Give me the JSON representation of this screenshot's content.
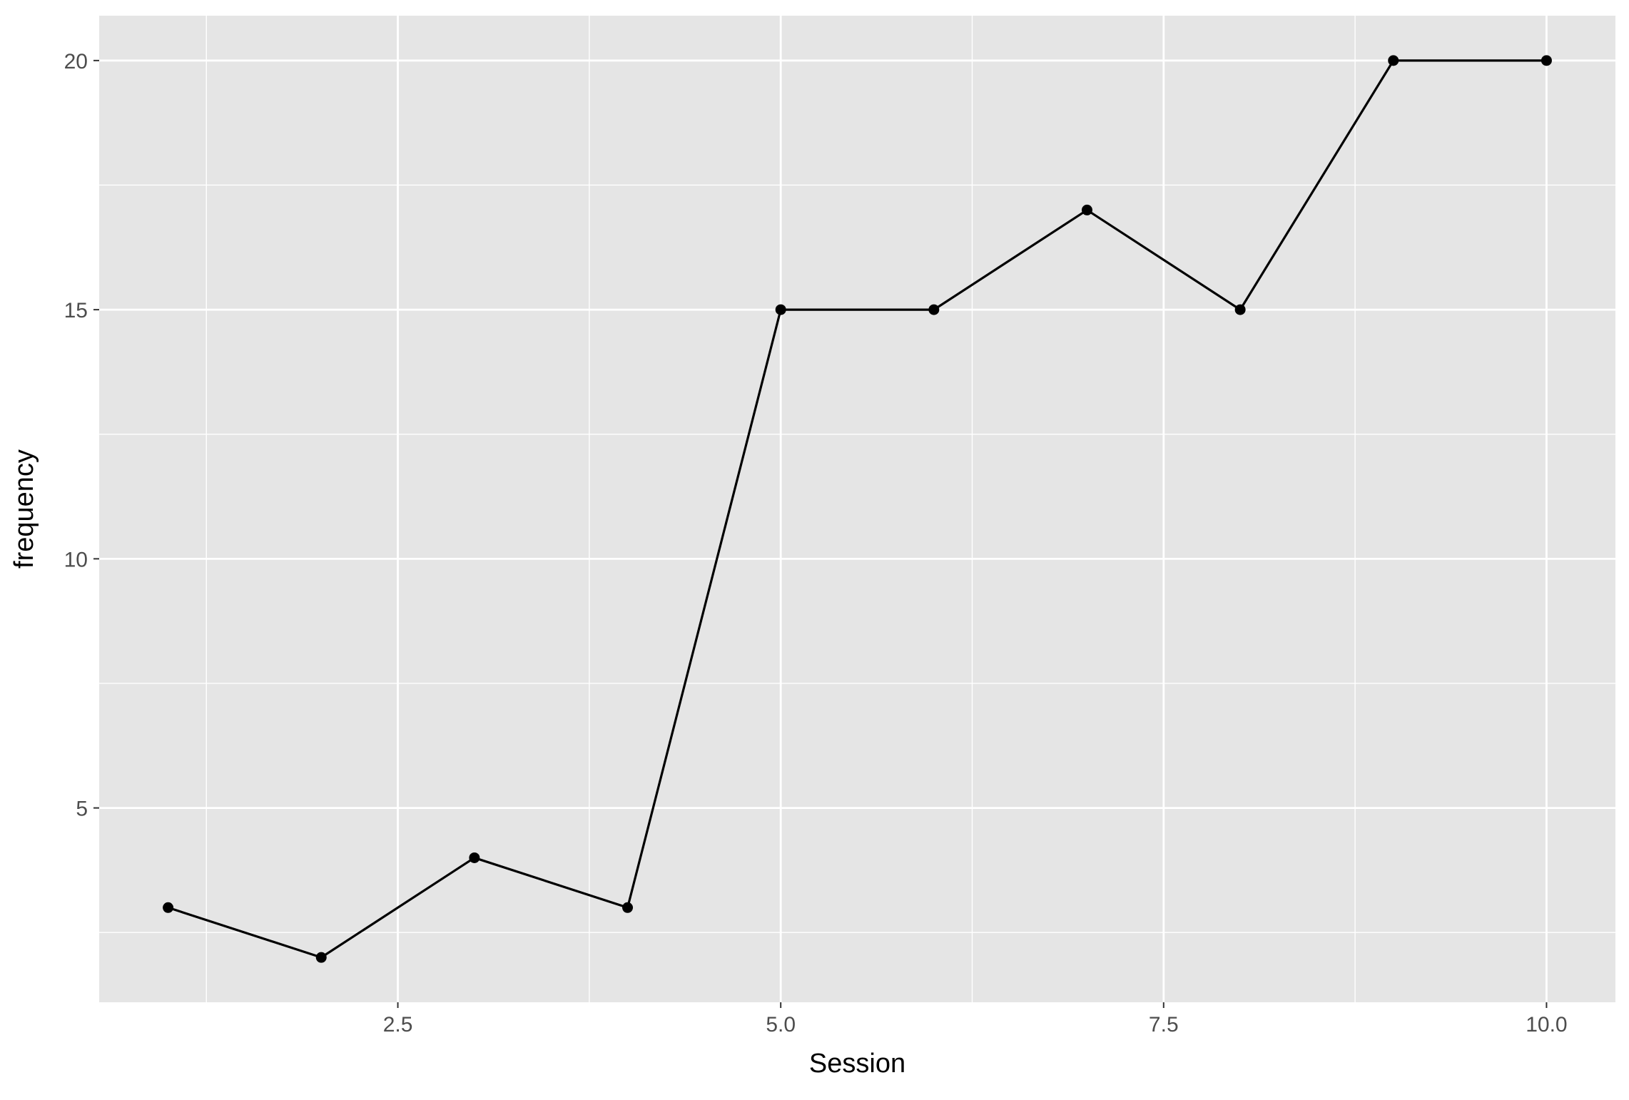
{
  "chart_data": {
    "type": "line",
    "title": "",
    "xlabel": "Session",
    "ylabel": "frequency",
    "x": [
      1,
      2,
      3,
      4,
      5,
      6,
      7,
      8,
      9,
      10
    ],
    "series": [
      {
        "values": [
          3,
          2,
          4,
          3,
          15,
          15,
          17,
          15,
          20,
          20
        ],
        "markers": true
      }
    ],
    "xlim": [
      0.55,
      10.45
    ],
    "ylim": [
      1.1,
      20.9
    ],
    "x_ticks": [
      2.5,
      5.0,
      7.5,
      10.0
    ],
    "x_tick_labels": [
      "2.5",
      "5.0",
      "7.5",
      "10.0"
    ],
    "x_minor_ticks": [
      1.25,
      3.75,
      6.25,
      8.75
    ],
    "y_ticks": [
      5,
      10,
      15,
      20
    ],
    "y_tick_labels": [
      "5",
      "10",
      "15",
      "20"
    ],
    "y_minor_ticks": [
      2.5,
      7.5,
      12.5,
      17.5
    ],
    "grid": true,
    "legend": "none",
    "colors": {
      "panel_background": "#E5E5E5",
      "grid": "#FFFFFF",
      "line": "#000000",
      "points": "#000000",
      "tick_text": "#4D4D4D",
      "axis_title": "#000000"
    }
  }
}
